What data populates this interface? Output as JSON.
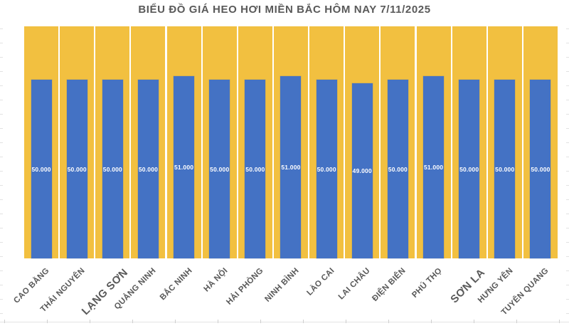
{
  "chart_data": {
    "type": "bar",
    "title": "BIỂU ĐỒ GIÁ HEO HƠI MIỀN BẮC HÔM NAY 7/11/2025",
    "categories": [
      "CAO BẰNG",
      "THÁI NGUYÊN",
      "LẠNG SƠN",
      "QUẢNG NINH",
      "BẮC NINH",
      "HÀ NỘI",
      "HẢI PHÒNG",
      "NINH BÌNH",
      "LÀO CAI",
      "LAI CHÂU",
      "ĐIỆN BIÊN",
      "PHÚ THỌ",
      "SƠN LA",
      "HƯNG YÊN",
      "TUYÊN QUANG"
    ],
    "values": [
      50000,
      50000,
      50000,
      50000,
      51000,
      50000,
      50000,
      51000,
      50000,
      49000,
      50000,
      51000,
      50000,
      50000,
      50000
    ],
    "value_labels": [
      "50.000",
      "50.000",
      "50.000",
      "50.000",
      "51.000",
      "50.000",
      "50.000",
      "51.000",
      "50.000",
      "49.000",
      "50.000",
      "51.000",
      "50.000",
      "50.000",
      "50.000"
    ],
    "xlabel": "",
    "ylabel": "",
    "ylim": [
      0,
      65000
    ],
    "legend": "none",
    "grid": "white vertical separators between category tracks",
    "emphasized_categories": [
      "LẠNG SƠN",
      "SƠN LA"
    ],
    "colors": {
      "bar": "#4472C4",
      "track_background_bar": "#F2C040",
      "value_label": "#FFFFFF",
      "category_label": "#595959",
      "title": "#595959",
      "page_background": "#FFFFFF",
      "sheet_gridline": "#E4E4E4"
    }
  }
}
